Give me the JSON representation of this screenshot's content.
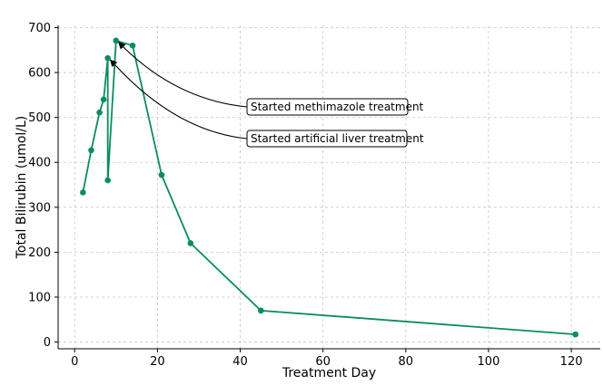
{
  "chart_data": {
    "type": "line",
    "title": "",
    "xlabel": "Treatment Day",
    "ylabel": "Total Bilirubin (umol/L)",
    "xlim": [
      -4,
      127
    ],
    "ylim": [
      -15,
      705
    ],
    "xticks": [
      0,
      20,
      40,
      60,
      80,
      100,
      120
    ],
    "yticks": [
      0,
      100,
      200,
      300,
      400,
      500,
      600,
      700
    ],
    "grid": true,
    "series": [
      {
        "name": "",
        "color": "#0b8c61",
        "x": [
          2,
          4,
          6,
          7,
          8,
          8,
          10,
          14,
          21,
          28,
          45,
          121
        ],
        "y": [
          333,
          427,
          511,
          540,
          632,
          360,
          671,
          660,
          372,
          220,
          70,
          17
        ]
      }
    ],
    "annotations": [
      {
        "text": "Started methimazole treatment",
        "x": 10,
        "y": 671
      },
      {
        "text": "Started artificial liver treatment",
        "x": 8,
        "y": 632
      }
    ]
  }
}
